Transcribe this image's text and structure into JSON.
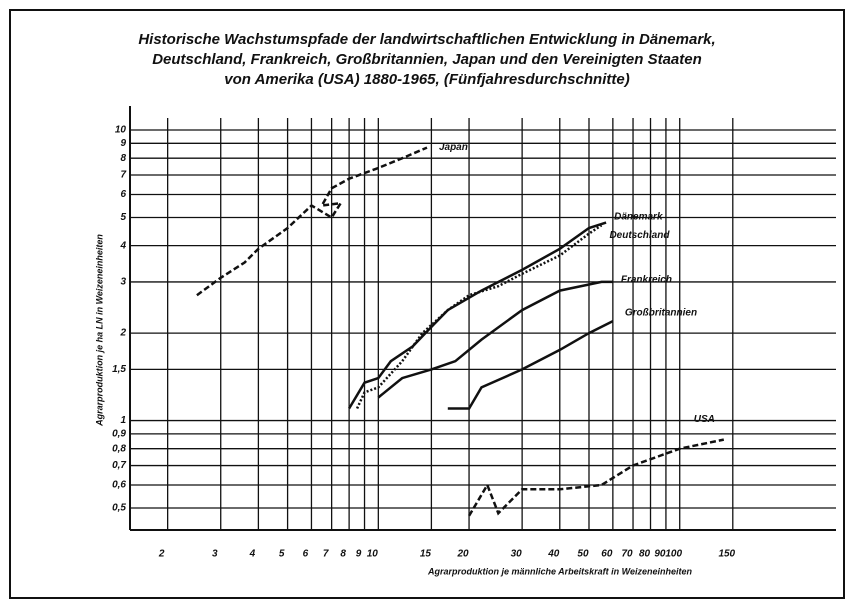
{
  "chart_data": {
    "type": "line",
    "title": [
      "Historische Wachstumspfade der landwirtschaftlichen Entwicklung in Dänemark,",
      "Deutschland, Frankreich, Großbritannien, Japan und den Vereinigten Staaten",
      "von Amerika (USA) 1880-1965, (Fünfjahresdurchschnitte)"
    ],
    "x_label": "Agrarproduktion je männliche Arbeitskraft in Weizeneinheiten",
    "y_label": "Agrarproduktion je ha LN in Weizeneinheiten",
    "x_log": true,
    "y_log": true,
    "grid": true,
    "xlim": [
      1.5,
      330
    ],
    "ylim": [
      0.42,
      11
    ],
    "xticks": [
      2,
      3,
      4,
      5,
      6,
      7,
      8,
      9,
      10,
      15,
      20,
      30,
      40,
      50,
      60,
      70,
      80,
      90,
      100,
      150
    ],
    "yticks": [
      {
        "value": 0.5,
        "label": "0,5"
      },
      {
        "value": 0.6,
        "label": "0,6"
      },
      {
        "value": 0.7,
        "label": "0,7"
      },
      {
        "value": 0.8,
        "label": "0,8"
      },
      {
        "value": 0.9,
        "label": "0,9"
      },
      1,
      {
        "value": 1.5,
        "label": "1,5"
      },
      2,
      3,
      4,
      5,
      6,
      7,
      8,
      9,
      10
    ],
    "series": [
      {
        "name": "Japan",
        "color": "#111",
        "dash": "dashed",
        "x": [
          2.5,
          3,
          3.6,
          4,
          5,
          6,
          7,
          7.5,
          6.5,
          7,
          8,
          10,
          12,
          14.5
        ],
        "values": [
          2.7,
          3.1,
          3.5,
          3.9,
          4.6,
          5.5,
          5.0,
          5.6,
          5.5,
          6.3,
          6.8,
          7.4,
          8.0,
          8.7
        ]
      },
      {
        "name": "Dänemark",
        "color": "#111",
        "dash": "solid",
        "x": [
          8,
          9,
          10,
          11,
          13,
          15,
          17,
          22,
          30,
          40,
          50,
          57
        ],
        "values": [
          1.1,
          1.35,
          1.4,
          1.6,
          1.8,
          2.1,
          2.4,
          2.8,
          3.3,
          3.9,
          4.6,
          4.8
        ]
      },
      {
        "name": "Deutschland",
        "color": "#111",
        "dash": "dotted",
        "x": [
          8.5,
          9,
          10,
          12,
          14,
          17,
          20,
          25,
          30,
          40,
          50,
          55
        ],
        "values": [
          1.1,
          1.25,
          1.3,
          1.6,
          2.0,
          2.4,
          2.7,
          2.9,
          3.2,
          3.7,
          4.4,
          4.7
        ]
      },
      {
        "name": "Frankreich",
        "color": "#111",
        "dash": "solid",
        "x": [
          10,
          12,
          15,
          18,
          22,
          30,
          40,
          55,
          60
        ],
        "values": [
          1.2,
          1.4,
          1.5,
          1.6,
          1.9,
          2.4,
          2.8,
          3.0,
          3.0
        ]
      },
      {
        "name": "Großbritannien",
        "color": "#111",
        "dash": "solid",
        "x": [
          17,
          20,
          22,
          30,
          40,
          50,
          60
        ],
        "values": [
          1.1,
          1.1,
          1.3,
          1.5,
          1.75,
          2.0,
          2.2
        ]
      },
      {
        "name": "USA",
        "color": "#111",
        "dash": "dashed",
        "x": [
          20,
          23,
          25,
          30,
          40,
          55,
          70,
          100,
          140
        ],
        "values": [
          0.47,
          0.6,
          0.48,
          0.58,
          0.58,
          0.6,
          0.7,
          0.8,
          0.86
        ]
      }
    ]
  }
}
